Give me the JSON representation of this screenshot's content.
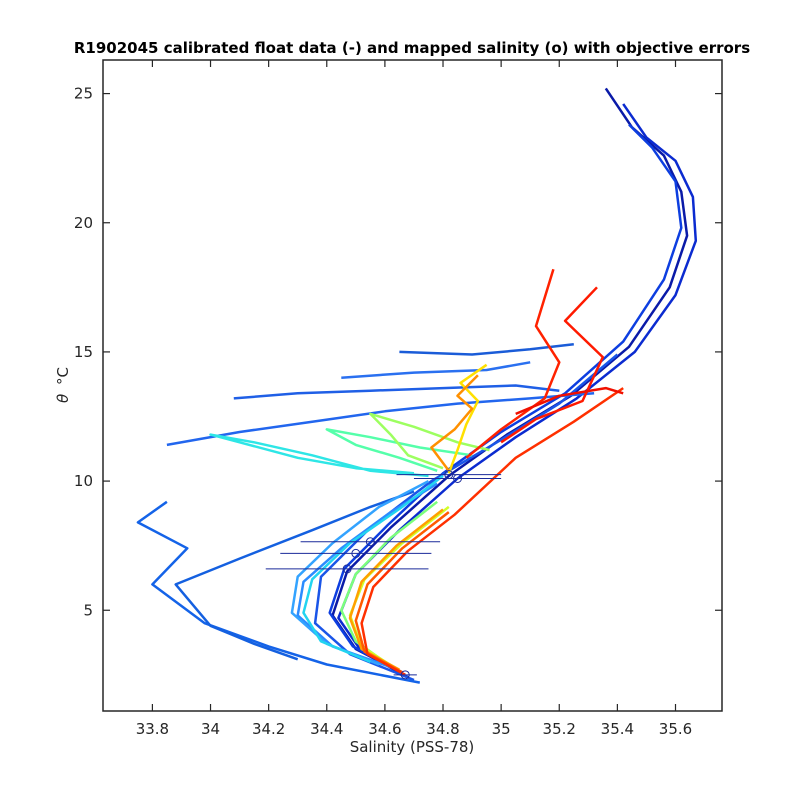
{
  "chart_data": {
    "type": "line",
    "title": "R1902045 calibrated float data (-) and mapped salinity (o) with objective errors",
    "xlabel": "Salinity (PSS-78)",
    "ylabel_symbol": "θ",
    "ylabel_unit": "°C",
    "xlim": [
      33.63,
      35.76
    ],
    "ylim": [
      1.1,
      26.3
    ],
    "xticks": [
      33.8,
      34,
      34.2,
      34.4,
      34.6,
      34.8,
      35,
      35.2,
      35.4,
      35.6
    ],
    "xtick_labels": [
      "33.8",
      "34",
      "34.2",
      "34.4",
      "34.6",
      "34.8",
      "35",
      "35.2",
      "35.4",
      "35.6"
    ],
    "yticks": [
      5,
      10,
      15,
      20,
      25
    ],
    "ytick_labels": [
      "5",
      "10",
      "15",
      "20",
      "25"
    ],
    "grid": false,
    "colormap": [
      "#00008f",
      "#0000ff",
      "#0080ff",
      "#00ffff",
      "#80ff80",
      "#ffff00",
      "#ff8000",
      "#ff0000"
    ],
    "series": [
      {
        "color": "#0a1aa8",
        "x": [
          34.67,
          34.5,
          34.42,
          34.47,
          34.62,
          34.82,
          35.02,
          35.24,
          35.44,
          35.58,
          35.64,
          35.62,
          35.56,
          35.45,
          35.36
        ],
        "y": [
          2.5,
          3.5,
          4.8,
          6.5,
          8.2,
          10.2,
          11.8,
          13.3,
          15.2,
          17.5,
          19.5,
          21.2,
          22.6,
          23.7,
          25.2
        ]
      },
      {
        "color": "#0b2bd0",
        "x": [
          34.68,
          34.52,
          34.44,
          34.5,
          34.65,
          34.85,
          35.05,
          35.26,
          35.46,
          35.6,
          35.67,
          35.66,
          35.6,
          35.5,
          35.42
        ],
        "y": [
          2.4,
          3.4,
          4.7,
          6.4,
          8.1,
          10.1,
          11.7,
          13.2,
          15.0,
          17.2,
          19.3,
          21.0,
          22.4,
          23.3,
          24.6
        ]
      },
      {
        "color": "#0d3ee0",
        "x": [
          34.66,
          34.49,
          34.41,
          34.46,
          34.61,
          34.8,
          35.0,
          35.22,
          35.42,
          35.56,
          35.62,
          35.6,
          35.52,
          35.44
        ],
        "y": [
          2.6,
          3.6,
          4.9,
          6.6,
          8.3,
          10.3,
          11.9,
          13.4,
          15.4,
          17.8,
          19.8,
          21.6,
          22.9,
          23.8
        ]
      },
      {
        "color": "#1a55e8",
        "x": [
          34.7,
          34.48,
          34.36,
          34.38,
          34.55,
          34.76,
          35.0,
          35.2,
          35.4
        ],
        "y": [
          2.3,
          3.3,
          4.5,
          6.3,
          8.2,
          10.0,
          11.6,
          13.0,
          14.9
        ]
      },
      {
        "color": "#1463e8",
        "x": [
          34.72,
          34.4,
          34.2,
          33.98,
          33.8,
          33.92,
          33.75,
          33.85
        ],
        "y": [
          2.2,
          2.9,
          3.6,
          4.5,
          6.0,
          7.4,
          8.4,
          9.2
        ]
      },
      {
        "color": "#1460e0",
        "x": [
          34.3,
          34.15,
          34.0,
          33.88,
          34.1,
          34.35,
          34.55,
          34.7
        ],
        "y": [
          3.1,
          3.7,
          4.4,
          6.0,
          7.0,
          8.1,
          9.0,
          9.6
        ]
      },
      {
        "color": "#2266ee",
        "x": [
          33.85,
          34.1,
          34.35,
          34.6,
          34.85,
          35.1,
          35.32
        ],
        "y": [
          11.4,
          11.9,
          12.3,
          12.7,
          13.0,
          13.2,
          13.4
        ]
      },
      {
        "color": "#1f5fe6",
        "x": [
          34.08,
          34.3,
          34.55,
          34.8,
          35.05,
          35.2
        ],
        "y": [
          13.2,
          13.4,
          13.5,
          13.6,
          13.7,
          13.5
        ]
      },
      {
        "color": "#2a70f0",
        "x": [
          34.45,
          34.7,
          34.95,
          35.1
        ],
        "y": [
          14.0,
          14.2,
          14.3,
          14.6
        ]
      },
      {
        "color": "#1a5cd8",
        "x": [
          34.65,
          34.9,
          35.1,
          35.25
        ],
        "y": [
          15.0,
          14.9,
          15.1,
          15.3
        ]
      },
      {
        "color": "#2c8cff",
        "x": [
          34.62,
          34.42,
          34.3,
          34.32,
          34.45,
          34.62,
          34.78
        ],
        "y": [
          2.8,
          3.6,
          4.8,
          6.1,
          7.4,
          8.8,
          9.9
        ]
      },
      {
        "color": "#33a3ff",
        "x": [
          34.58,
          34.4,
          34.28,
          34.3,
          34.42,
          34.58,
          34.75
        ],
        "y": [
          2.9,
          3.7,
          4.9,
          6.3,
          7.6,
          9.0,
          10.0
        ]
      },
      {
        "color": "#22d4f0",
        "x": [
          34.55,
          34.38,
          34.32,
          34.35,
          34.48,
          34.66,
          34.8
        ],
        "y": [
          3.0,
          3.8,
          4.9,
          6.2,
          7.6,
          9.0,
          10.2
        ]
      },
      {
        "color": "#2ee6e6",
        "x": [
          34.75,
          34.55,
          34.35,
          34.15,
          34.0,
          34.1,
          34.3,
          34.5,
          34.7
        ],
        "y": [
          10.2,
          10.4,
          11.0,
          11.5,
          11.8,
          11.5,
          10.9,
          10.5,
          10.3
        ]
      },
      {
        "color": "#55ffaa",
        "x": [
          34.78,
          34.65,
          34.5,
          34.4,
          34.55,
          34.72,
          34.9
        ],
        "y": [
          10.4,
          10.9,
          11.4,
          12.0,
          11.7,
          11.3,
          11.0
        ]
      },
      {
        "color": "#9dff60",
        "x": [
          34.8,
          34.68,
          34.62,
          34.55,
          34.7,
          34.85,
          34.96
        ],
        "y": [
          10.5,
          11.0,
          11.8,
          12.6,
          12.1,
          11.5,
          11.2
        ]
      },
      {
        "color": "#7cff7c",
        "x": [
          34.6,
          34.5,
          34.45,
          34.5,
          34.62,
          34.78
        ],
        "y": [
          3.0,
          3.8,
          5.0,
          6.4,
          7.8,
          9.2
        ]
      },
      {
        "color": "#d2ff2a",
        "x": [
          34.63,
          34.52,
          34.48,
          34.53,
          34.66,
          34.82
        ],
        "y": [
          2.8,
          3.6,
          4.8,
          6.2,
          7.6,
          9.0
        ]
      },
      {
        "color": "#ffe000",
        "x": [
          34.82,
          34.85,
          34.88,
          34.92,
          34.86,
          34.95
        ],
        "y": [
          10.3,
          11.2,
          12.2,
          13.1,
          13.8,
          14.5
        ]
      },
      {
        "color": "#ffa000",
        "x": [
          34.65,
          34.52,
          34.48,
          34.52,
          34.64,
          34.8
        ],
        "y": [
          2.7,
          3.5,
          4.7,
          6.1,
          7.5,
          8.9
        ]
      },
      {
        "color": "#ff9000",
        "x": [
          34.82,
          34.76,
          34.84,
          34.9,
          34.85,
          34.92
        ],
        "y": [
          10.4,
          11.3,
          12.0,
          12.8,
          13.3,
          14.1
        ]
      },
      {
        "color": "#ff5a00",
        "x": [
          34.66,
          34.53,
          34.5,
          34.54,
          34.66,
          34.82
        ],
        "y": [
          2.6,
          3.4,
          4.6,
          6.0,
          7.4,
          8.8
        ]
      },
      {
        "color": "#ff3000",
        "x": [
          34.67,
          34.54,
          34.52,
          34.56,
          34.68,
          34.84,
          35.05,
          35.25,
          35.42
        ],
        "y": [
          2.5,
          3.3,
          4.5,
          5.9,
          7.3,
          8.7,
          10.9,
          12.3,
          13.6
        ]
      },
      {
        "color": "#ff2200",
        "x": [
          34.88,
          35.0,
          35.15,
          35.2,
          35.12,
          35.18
        ],
        "y": [
          10.9,
          12.0,
          13.2,
          14.6,
          16.0,
          18.2
        ]
      },
      {
        "color": "#ff1a00",
        "x": [
          35.0,
          35.12,
          35.28,
          35.35,
          35.22,
          35.33
        ],
        "y": [
          11.5,
          12.4,
          13.1,
          14.8,
          16.2,
          17.5
        ]
      },
      {
        "color": "#f01000",
        "x": [
          35.05,
          35.2,
          35.36,
          35.42
        ],
        "y": [
          12.6,
          13.3,
          13.6,
          13.4
        ]
      }
    ],
    "mapped_points": [
      {
        "x": 34.82,
        "y": 10.25,
        "err": 0.18
      },
      {
        "x": 34.85,
        "y": 10.1,
        "err": 0.15
      },
      {
        "x": 34.55,
        "y": 7.65,
        "err": 0.24
      },
      {
        "x": 34.5,
        "y": 7.2,
        "err": 0.26
      },
      {
        "x": 34.47,
        "y": 6.6,
        "err": 0.28
      },
      {
        "x": 34.67,
        "y": 2.5,
        "err": 0.04
      }
    ]
  }
}
